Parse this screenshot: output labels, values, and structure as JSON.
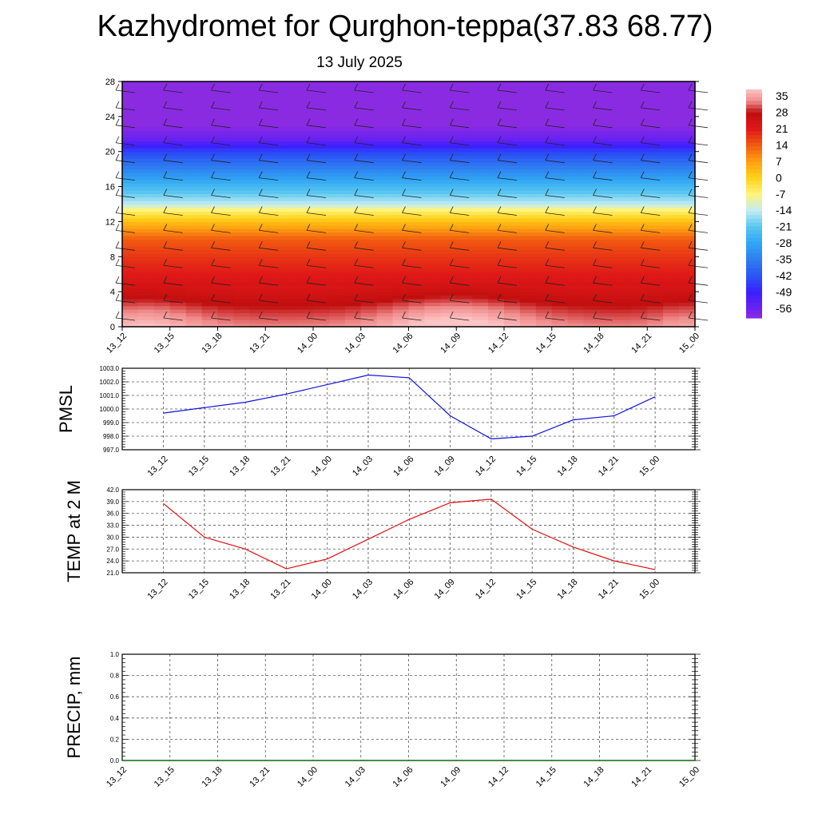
{
  "header": {
    "title": "Kazhydromet for Qurghon-teppa(37.83 68.77)",
    "subtitle": "13 July 2025"
  },
  "palette": {
    "pmsl_line": "#1010e0",
    "temp_line": "#e01010",
    "precip_line": "#006400",
    "grid": "#555555"
  },
  "chart_data": [
    {
      "id": "cross-section",
      "type": "heatmap",
      "title": "",
      "xlabel": "",
      "ylabel": "",
      "x_ticks": [
        "13_12",
        "13_15",
        "13_18",
        "13_21",
        "14_00",
        "14_03",
        "14_06",
        "14_09",
        "14_12",
        "14_15",
        "14_18",
        "14_21",
        "15_00"
      ],
      "y_ticks": [
        0,
        4,
        8,
        12,
        16,
        20,
        24,
        28
      ],
      "ylim": [
        0,
        28
      ],
      "colorbar": {
        "labels": [
          "35",
          "28",
          "21",
          "14",
          "7",
          "0",
          "-7",
          "-14",
          "-21",
          "-28",
          "-35",
          "-42",
          "-49",
          "-56"
        ],
        "range": [
          -60,
          38
        ]
      },
      "temperature_profile": [
        {
          "height": 0,
          "value": 34
        },
        {
          "height": 2,
          "value": 30
        },
        {
          "height": 4,
          "value": 25
        },
        {
          "height": 6,
          "value": 21
        },
        {
          "height": 8,
          "value": 18
        },
        {
          "height": 10,
          "value": 14
        },
        {
          "height": 12,
          "value": 3
        },
        {
          "height": 13.5,
          "value": -8
        },
        {
          "height": 14,
          "value": -14
        },
        {
          "height": 16,
          "value": -24
        },
        {
          "height": 18,
          "value": -34
        },
        {
          "height": 20,
          "value": -44
        },
        {
          "height": 21.5,
          "value": -56
        },
        {
          "height": 23,
          "value": -60
        },
        {
          "height": 28,
          "value": -60
        }
      ],
      "wind_barbs": "present"
    },
    {
      "id": "pmsl",
      "type": "line",
      "ylabel": "PMSL",
      "xlabel": "",
      "categories": [
        "13_12",
        "13_15",
        "13_18",
        "13_21",
        "14_00",
        "14_03",
        "14_06",
        "14_09",
        "14_12",
        "14_15",
        "14_18",
        "14_21",
        "15_00"
      ],
      "y_ticks": [
        "997.0",
        "998.0",
        "999.0",
        "1000.0",
        "1001.0",
        "1002.0",
        "1003.0"
      ],
      "ylim": [
        997,
        1003
      ],
      "grid": true,
      "series": [
        {
          "values": [
            999.7,
            1000.1,
            1000.5,
            1001.1,
            1001.8,
            1002.5,
            1002.3,
            999.5,
            997.8,
            998.0,
            999.2,
            999.5,
            1000.9
          ]
        }
      ]
    },
    {
      "id": "temp",
      "type": "line",
      "ylabel": "TEMP at 2 M",
      "xlabel": "",
      "categories": [
        "13_12",
        "13_15",
        "13_18",
        "13_21",
        "14_00",
        "14_03",
        "14_06",
        "14_09",
        "14_12",
        "14_15",
        "14_18",
        "14_21",
        "15_00"
      ],
      "y_ticks": [
        "21.0",
        "24.0",
        "27.0",
        "30.0",
        "33.0",
        "36.0",
        "39.0",
        "42.0"
      ],
      "ylim": [
        21,
        42
      ],
      "grid": true,
      "series": [
        {
          "values": [
            38.5,
            30.0,
            27.0,
            22.0,
            24.5,
            29.5,
            34.5,
            38.7,
            39.6,
            32.0,
            27.5,
            24.0,
            21.8
          ]
        }
      ]
    },
    {
      "id": "precip",
      "type": "line",
      "ylabel": "PRECIP, mm",
      "xlabel": "",
      "categories": [
        "13_12",
        "13_15",
        "13_18",
        "13_21",
        "14_00",
        "14_03",
        "14_06",
        "14_09",
        "14_12",
        "14_15",
        "14_18",
        "14_21",
        "15_00"
      ],
      "y_ticks": [
        "0.0",
        "0.2",
        "0.4",
        "0.6",
        "0.8",
        "1.0"
      ],
      "ylim": [
        0,
        1
      ],
      "grid": true,
      "series": [
        {
          "values": [
            0,
            0,
            0,
            0,
            0,
            0,
            0,
            0,
            0,
            0,
            0,
            0,
            0
          ]
        }
      ]
    }
  ]
}
